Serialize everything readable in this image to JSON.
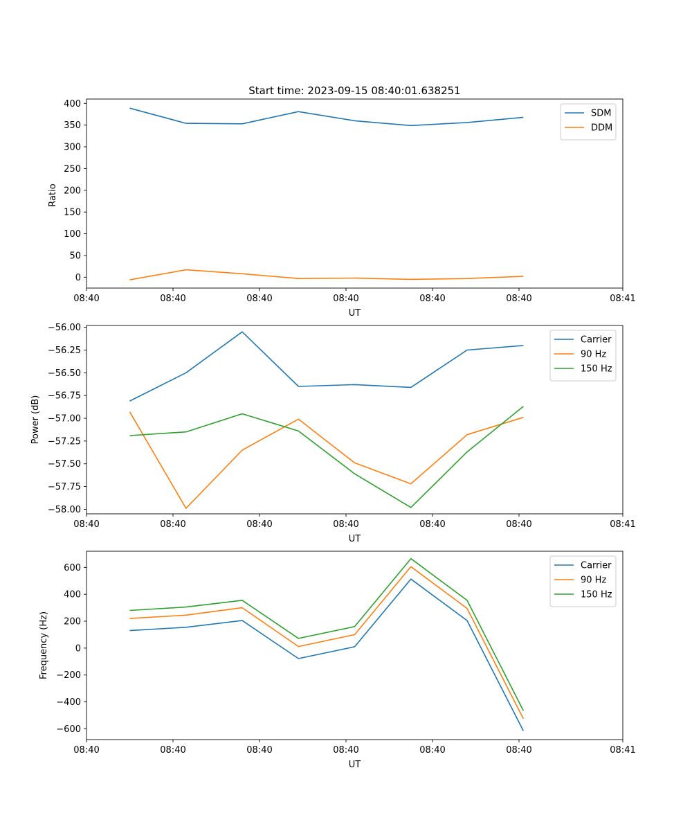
{
  "chart_data": [
    {
      "type": "line",
      "title": "Start time: 2023-09-15 08:40:01.638251",
      "xlabel": "UT",
      "ylabel": "Ratio",
      "xlim": [
        0,
        6.2
      ],
      "ylim": [
        -25,
        410
      ],
      "x_ticks": [
        0,
        1,
        2,
        3,
        4,
        5,
        6.2
      ],
      "x_tick_labels": [
        "08:40",
        "08:40",
        "08:40",
        "08:40",
        "08:40",
        "08:40",
        "08:41"
      ],
      "y_ticks": [
        0,
        50,
        100,
        150,
        200,
        250,
        300,
        350,
        400
      ],
      "y_tick_labels": [
        "0",
        "50",
        "100",
        "150",
        "200",
        "250",
        "300",
        "350",
        "400"
      ],
      "legend_position": "top-right",
      "x": [
        0.5,
        1.15,
        1.8,
        2.45,
        3.1,
        3.75,
        4.4,
        5.05
      ],
      "series": [
        {
          "name": "SDM",
          "color": "#1f77b4",
          "values": [
            389,
            354,
            353,
            381,
            360,
            349,
            356,
            368
          ]
        },
        {
          "name": "DDM",
          "color": "#ff7f0e",
          "values": [
            -6,
            17,
            8,
            -3,
            -2,
            -5,
            -3,
            2
          ]
        }
      ]
    },
    {
      "type": "line",
      "title": "",
      "xlabel": "UT",
      "ylabel": "Power (dB)",
      "xlim": [
        0,
        6.2
      ],
      "ylim": [
        -58.05,
        -55.98
      ],
      "x_ticks": [
        0,
        1,
        2,
        3,
        4,
        5,
        6.2
      ],
      "x_tick_labels": [
        "08:40",
        "08:40",
        "08:40",
        "08:40",
        "08:40",
        "08:40",
        "08:41"
      ],
      "y_ticks": [
        -58.0,
        -57.75,
        -57.5,
        -57.25,
        -57.0,
        -56.75,
        -56.5,
        -56.25,
        -56.0
      ],
      "y_tick_labels": [
        "−58.00",
        "−57.75",
        "−57.50",
        "−57.25",
        "−57.00",
        "−56.75",
        "−56.50",
        "−56.25",
        "−56.00"
      ],
      "legend_position": "top-right",
      "x": [
        0.5,
        1.15,
        1.8,
        2.45,
        3.1,
        3.75,
        4.4,
        5.05
      ],
      "series": [
        {
          "name": "Carrier",
          "color": "#1f77b4",
          "values": [
            -56.81,
            -56.5,
            -56.05,
            -56.65,
            -56.63,
            -56.66,
            -56.25,
            -56.2
          ]
        },
        {
          "name": "90 Hz",
          "color": "#ff7f0e",
          "values": [
            -56.93,
            -57.99,
            -57.35,
            -57.01,
            -57.49,
            -57.72,
            -57.18,
            -56.99
          ]
        },
        {
          "name": "150 Hz",
          "color": "#2ca02c",
          "values": [
            -57.19,
            -57.15,
            -56.95,
            -57.14,
            -57.61,
            -57.98,
            -57.37,
            -56.87
          ]
        }
      ]
    },
    {
      "type": "line",
      "title": "",
      "xlabel": "UT",
      "ylabel": "Frequency (Hz)",
      "xlim": [
        0,
        6.2
      ],
      "ylim": [
        -680,
        720
      ],
      "x_ticks": [
        0,
        1,
        2,
        3,
        4,
        5,
        6.2
      ],
      "x_tick_labels": [
        "08:40",
        "08:40",
        "08:40",
        "08:40",
        "08:40",
        "08:40",
        "08:41"
      ],
      "y_ticks": [
        -600,
        -400,
        -200,
        0,
        200,
        400,
        600
      ],
      "y_tick_labels": [
        "−600",
        "−400",
        "−200",
        "0",
        "200",
        "400",
        "600"
      ],
      "legend_position": "top-right",
      "x": [
        0.5,
        1.15,
        1.8,
        2.45,
        3.1,
        3.75,
        4.4,
        5.05
      ],
      "series": [
        {
          "name": "Carrier",
          "color": "#1f77b4",
          "values": [
            130,
            155,
            205,
            -78,
            10,
            513,
            205,
            -615
          ]
        },
        {
          "name": "90 Hz",
          "color": "#ff7f0e",
          "values": [
            220,
            245,
            300,
            12,
            100,
            605,
            295,
            -525
          ]
        },
        {
          "name": "150 Hz",
          "color": "#2ca02c",
          "values": [
            280,
            305,
            355,
            72,
            160,
            665,
            355,
            -465
          ]
        }
      ]
    }
  ]
}
